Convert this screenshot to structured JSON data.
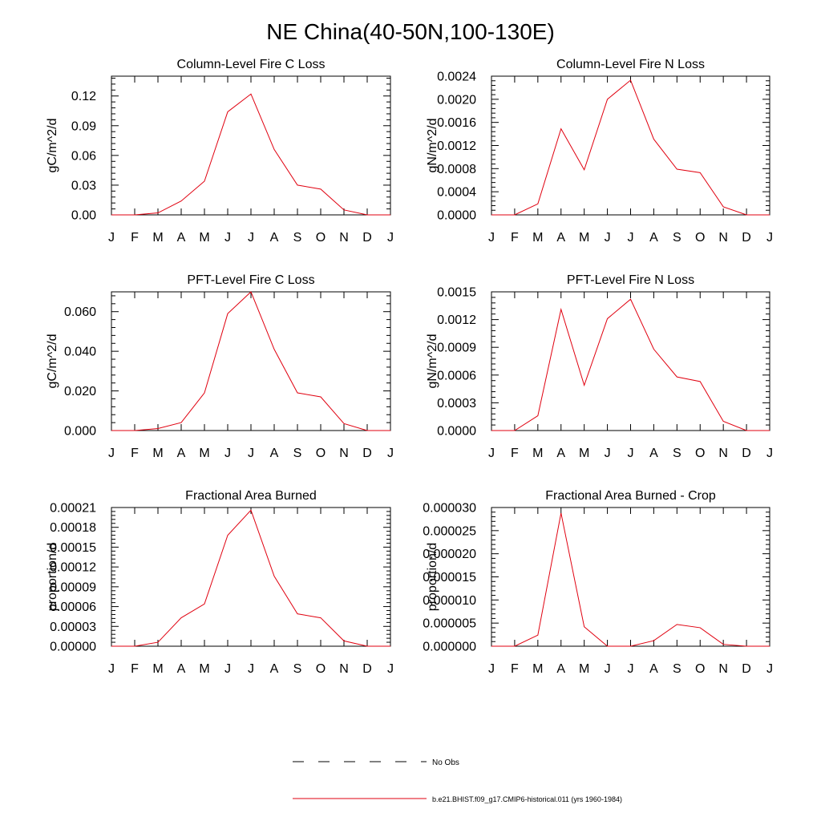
{
  "figure": {
    "title": "NE China(40-50N,100-130E)"
  },
  "legend": {
    "obs_label": "No Obs",
    "model_label": "b.e21.BHIST.f09_g17.CMIP6-historical.011 (yrs 1960-1984)",
    "obs_color": "#000000",
    "model_color": "#e0000f"
  },
  "chart_data": [
    {
      "type": "line",
      "title": "Column-Level Fire C Loss",
      "ylabel": "gC/m^2/d",
      "x": [
        "J",
        "F",
        "M",
        "A",
        "M",
        "J",
        "J",
        "A",
        "S",
        "O",
        "N",
        "D",
        "J"
      ],
      "ylim": [
        0,
        0.14
      ],
      "yticks": [
        "0.00",
        "0.03",
        "0.06",
        "0.09",
        "0.12"
      ],
      "ytick_values": [
        0,
        0.03,
        0.06,
        0.09,
        0.12
      ],
      "series": [
        {
          "values": [
            0,
            0,
            0.002,
            0.014,
            0.034,
            0.104,
            0.122,
            0.066,
            0.03,
            0.026,
            0.005,
            0,
            0
          ]
        }
      ]
    },
    {
      "type": "line",
      "title": "Column-Level Fire N Loss",
      "ylabel": "gN/m^2/d",
      "x": [
        "J",
        "F",
        "M",
        "A",
        "M",
        "J",
        "J",
        "A",
        "S",
        "O",
        "N",
        "D",
        "J"
      ],
      "ylim": [
        0,
        0.0024
      ],
      "yticks": [
        "0.0000",
        "0.0004",
        "0.0008",
        "0.0012",
        "0.0016",
        "0.0020",
        "0.0024"
      ],
      "ytick_values": [
        0,
        0.0004,
        0.0008,
        0.0012,
        0.0016,
        0.002,
        0.0024
      ],
      "series": [
        {
          "values": [
            0,
            0,
            0.00019,
            0.00149,
            0.00078,
            0.002,
            0.00233,
            0.00131,
            0.00079,
            0.00073,
            0.00014,
            0,
            0
          ]
        }
      ]
    },
    {
      "type": "line",
      "title": "PFT-Level Fire C Loss",
      "ylabel": "gC/m^2/d",
      "x": [
        "J",
        "F",
        "M",
        "A",
        "M",
        "J",
        "J",
        "A",
        "S",
        "O",
        "N",
        "D",
        "J"
      ],
      "ylim": [
        0,
        0.07
      ],
      "yticks": [
        "0.000",
        "0.020",
        "0.040",
        "0.060"
      ],
      "ytick_values": [
        0,
        0.02,
        0.04,
        0.06
      ],
      "series": [
        {
          "values": [
            0,
            0,
            0.001,
            0.004,
            0.019,
            0.059,
            0.07,
            0.041,
            0.019,
            0.017,
            0.0035,
            0,
            0
          ]
        }
      ]
    },
    {
      "type": "line",
      "title": "PFT-Level Fire N Loss",
      "ylabel": "gN/m^2/d",
      "x": [
        "J",
        "F",
        "M",
        "A",
        "M",
        "J",
        "J",
        "A",
        "S",
        "O",
        "N",
        "D",
        "J"
      ],
      "ylim": [
        0,
        0.0015
      ],
      "yticks": [
        "0.0000",
        "0.0003",
        "0.0006",
        "0.0009",
        "0.0012",
        "0.0015"
      ],
      "ytick_values": [
        0,
        0.0003,
        0.0006,
        0.0009,
        0.0012,
        0.0015
      ],
      "series": [
        {
          "values": [
            0,
            0,
            0.00016,
            0.00131,
            0.00049,
            0.00121,
            0.00142,
            0.00088,
            0.00058,
            0.00053,
            0.0001,
            0,
            0
          ]
        }
      ]
    },
    {
      "type": "line",
      "title": "Fractional Area Burned",
      "ylabel": "proportion/d",
      "x": [
        "J",
        "F",
        "M",
        "A",
        "M",
        "J",
        "J",
        "A",
        "S",
        "O",
        "N",
        "D",
        "J"
      ],
      "ylim": [
        0,
        0.00021
      ],
      "yticks": [
        "0.00000",
        "0.00003",
        "0.00006",
        "0.00009",
        "0.00012",
        "0.00015",
        "0.00018",
        "0.00021"
      ],
      "ytick_values": [
        0,
        3e-05,
        6e-05,
        9e-05,
        0.00012,
        0.00015,
        0.00018,
        0.00021
      ],
      "series": [
        {
          "values": [
            0,
            0,
            6e-06,
            4.3e-05,
            6.4e-05,
            0.000168,
            0.000206,
            0.000106,
            4.9e-05,
            4.3e-05,
            8e-06,
            0,
            0
          ]
        }
      ]
    },
    {
      "type": "line",
      "title": "Fractional Area Burned - Crop",
      "ylabel": "proportion/d",
      "x": [
        "J",
        "F",
        "M",
        "A",
        "M",
        "J",
        "J",
        "A",
        "S",
        "O",
        "N",
        "D",
        "J"
      ],
      "ylim": [
        0,
        3e-05
      ],
      "yticks": [
        "0.000000",
        "0.000005",
        "0.000010",
        "0.000015",
        "0.000020",
        "0.000025",
        "0.000030"
      ],
      "ytick_values": [
        0,
        5e-06,
        1e-05,
        1.5e-05,
        2e-05,
        2.5e-05,
        3e-05
      ],
      "series": [
        {
          "values": [
            0,
            0,
            2.4e-06,
            2.88e-05,
            4.2e-06,
            0,
            0,
            1.2e-06,
            4.7e-06,
            4e-06,
            4e-07,
            0,
            0
          ]
        }
      ]
    }
  ]
}
